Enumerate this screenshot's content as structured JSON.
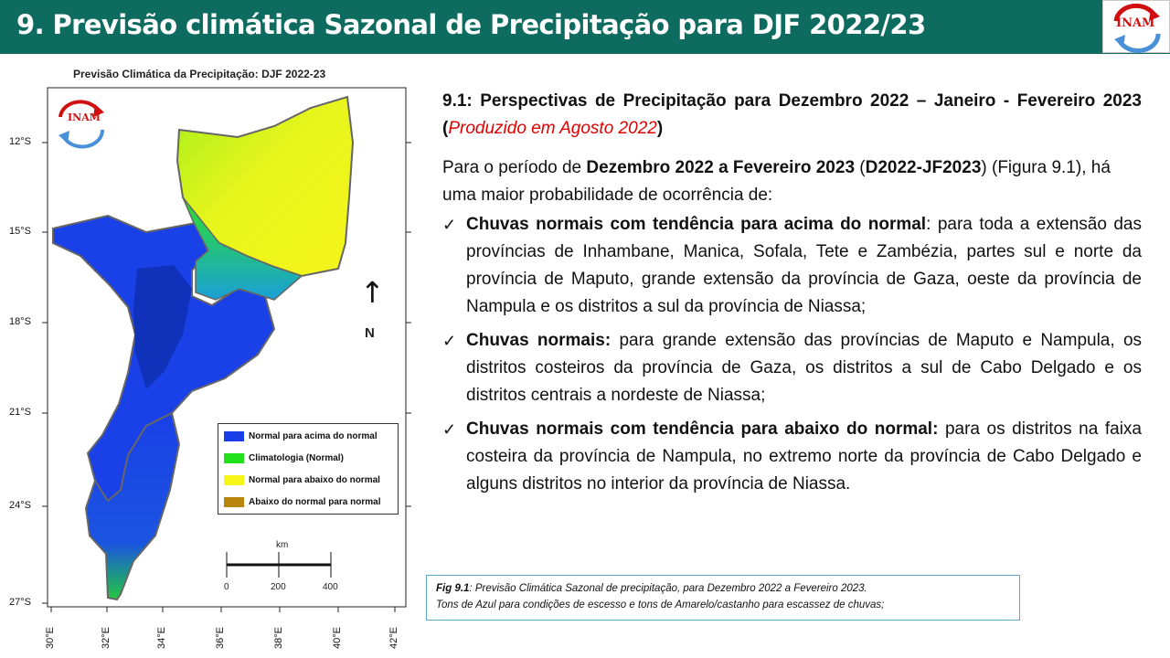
{
  "header": {
    "title": "9. Previsão climática Sazonal de Precipitação para DJF 2022/23",
    "logo_text": "INAM"
  },
  "map": {
    "title": "Previsão Climática da Precipitação: DJF 2022-23",
    "logo_text": "INAM",
    "lat_ticks": [
      "12°S",
      "15°S",
      "18°S",
      "21°S",
      "24°S",
      "27°S"
    ],
    "lon_ticks": [
      "30°E",
      "32°E",
      "34°E",
      "36°E",
      "38°E",
      "40°E",
      "42°E"
    ],
    "legend": [
      {
        "label": "Normal para acima do normal",
        "color": "#1a3ee8"
      },
      {
        "label": "Climatologia (Normal)",
        "color": "#22e01c"
      },
      {
        "label": "Normal para abaixo do normal",
        "color": "#f5f51a"
      },
      {
        "label": "Abaixo do normal para normal",
        "color": "#b8860b"
      }
    ],
    "north_label": "N",
    "scale_bar": {
      "unit": "km",
      "labels": [
        "0",
        "200",
        "400"
      ]
    }
  },
  "content": {
    "heading": "9.1: Perspectivas de Precipitação para Dezembro 2022 – Janeiro - Fevereiro 2023 (",
    "heading_red": "Produzido em Agosto 2022",
    "heading_end": ")",
    "intro_1": "Para o período de ",
    "intro_bold_1": "Dezembro 2022 a Fevereiro 2023",
    "intro_2": " (",
    "intro_bold_2": "D2022-JF2023",
    "intro_3": ") (Figura 9.1), há uma maior probabilidade de ocorrência de:",
    "bullets": [
      {
        "title": "Chuvas normais com tendência para acima do normal",
        "text": ": para toda a extensão das províncias de Inhambane, Manica, Sofala, Tete e Zambézia, partes sul e norte da província de Maputo, grande extensão da província de Gaza, oeste da província de Nampula e os distritos a sul da província de Niassa;"
      },
      {
        "title": "Chuvas normais:",
        "text": " para grande extensão das províncias de Maputo e Nampula, os distritos costeiros da província de Gaza, os distritos a sul de Cabo Delgado e os distritos centrais a nordeste de Niassa;"
      },
      {
        "title": "Chuvas normais com tendência para abaixo do normal:",
        "text": " para os distritos na faixa costeira da província de Nampula, no extremo norte da província de Cabo Delgado e alguns distritos no interior da província de Niassa."
      }
    ],
    "check_glyph": "✓"
  },
  "caption": {
    "label": "Fig 9.1",
    "text_1": ": Previsão Climática Sazonal de precipitação, para Dezembro 2022 a Fevereiro 2023.",
    "text_2": "Tons de Azul para condições de escesso e tons de Amarelo/castanho para escassez de chuvas;"
  }
}
